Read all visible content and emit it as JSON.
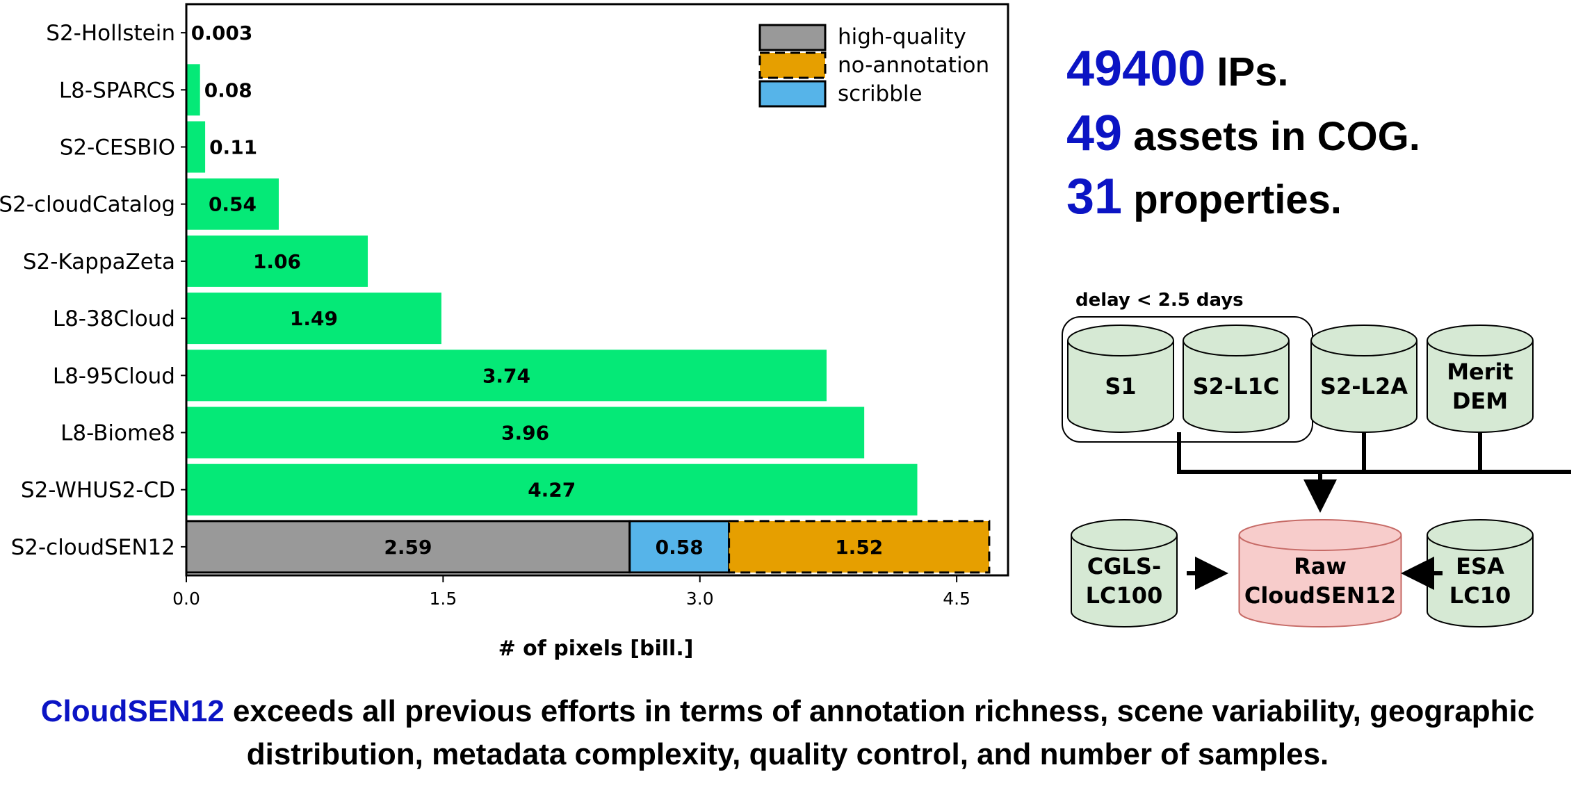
{
  "colors": {
    "green": "#05e977",
    "gray": "#999999",
    "blue": "#56b4e9",
    "orange": "#e69f00",
    "accent_blue": "#0b14c4",
    "db_green_fill": "#d6e9d4",
    "db_red_fill": "#f7cccb",
    "db_red_stroke": "#c66a66"
  },
  "chart_data": {
    "type": "bar",
    "orientation": "horizontal",
    "categories": [
      "S2-Hollstein",
      "L8-SPARCS",
      "S2-CESBIO",
      "S2-cloudCatalog",
      "S2-KappaZeta",
      "L8-38Cloud",
      "L8-95Cloud",
      "L8-Biome8",
      "S2-WHUS2-CD",
      "S2-cloudSEN12"
    ],
    "values": [
      0.003,
      0.08,
      0.11,
      0.54,
      1.06,
      1.49,
      3.74,
      3.96,
      4.27,
      null
    ],
    "value_labels": [
      "0.003",
      "0.08",
      "0.11",
      "0.54",
      "1.06",
      "1.49",
      "3.74",
      "3.96",
      "4.27",
      ""
    ],
    "stacked": {
      "category": "S2-cloudSEN12",
      "segments": [
        {
          "name": "high-quality",
          "value": 2.59,
          "label": "2.59",
          "color": "#999999"
        },
        {
          "name": "scribble",
          "value": 0.58,
          "label": "0.58",
          "color": "#56b4e9"
        },
        {
          "name": "no-annotation",
          "value": 1.52,
          "label": "1.52",
          "color": "#e69f00",
          "dashed": true
        }
      ]
    },
    "xlabel": "# of pixels [bill.]",
    "ylabel": "",
    "xlim": [
      0,
      4.8
    ],
    "xticks": [
      0.0,
      1.5,
      3.0,
      4.5
    ],
    "xtick_labels": [
      "0.0",
      "1.5",
      "3.0",
      "4.5"
    ],
    "legend": {
      "placement": "top-right",
      "entries": [
        {
          "label": "high-quality",
          "color": "#999999",
          "dashed": false
        },
        {
          "label": "no-annotation",
          "color": "#e69f00",
          "dashed": true
        },
        {
          "label": "scribble",
          "color": "#56b4e9",
          "dashed": false
        }
      ]
    },
    "grid": false
  },
  "stats": [
    {
      "number": "49400",
      "text": " IPs."
    },
    {
      "number": "49",
      "text": " assets in COG."
    },
    {
      "number": "31",
      "text": " properties."
    }
  ],
  "diagram": {
    "group_label": "delay < 2.5 days",
    "sources": [
      {
        "id": "s1",
        "lines": [
          "S1"
        ]
      },
      {
        "id": "s2l1c",
        "lines": [
          "S2-L1C"
        ]
      },
      {
        "id": "s2l2a",
        "lines": [
          "S2-L2A"
        ]
      },
      {
        "id": "merit",
        "lines": [
          "Merit",
          "DEM"
        ]
      }
    ],
    "left": {
      "lines": [
        "CGLS-",
        "LC100"
      ]
    },
    "center": {
      "lines": [
        "Raw",
        "CloudSEN12"
      ]
    },
    "right": {
      "lines": [
        "ESA",
        "LC10"
      ]
    }
  },
  "caption": {
    "highlight": "CloudSEN12",
    "line1_rest": " exceeds all previous efforts in terms of annotation richness, scene variability, geographic",
    "line2": "distribution, metadata complexity, quality control, and number of samples."
  }
}
